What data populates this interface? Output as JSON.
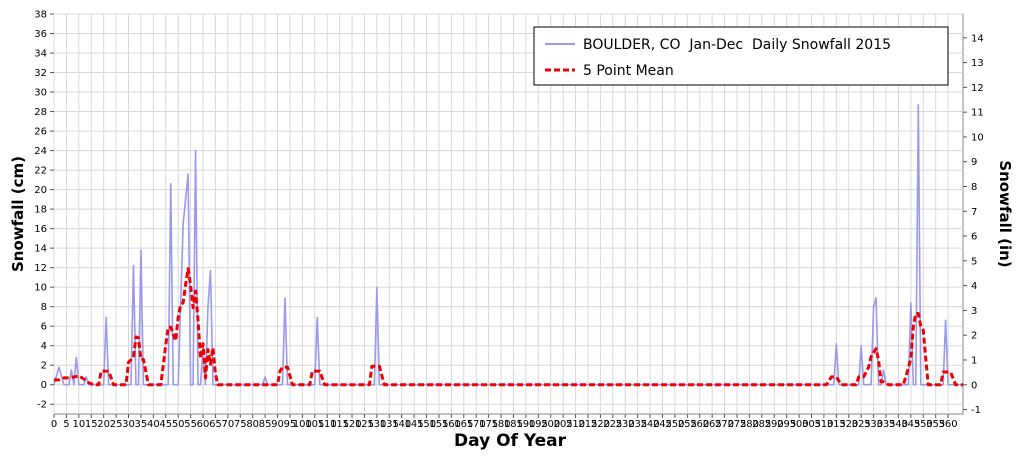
{
  "chart_data": {
    "type": "line",
    "xlabel": "Day Of Year",
    "ylabel_left": "Snowfall (cm)",
    "ylabel_right": "Snowfall (in)",
    "xlim": [
      0,
      366
    ],
    "ylim_left": [
      -3,
      38
    ],
    "ylim_right": [
      -1.18,
      14.96
    ],
    "x_ticks": [
      0,
      5,
      10,
      15,
      20,
      25,
      30,
      35,
      40,
      45,
      50,
      55,
      60,
      65,
      70,
      75,
      80,
      85,
      90,
      95,
      100,
      105,
      110,
      115,
      120,
      125,
      130,
      135,
      140,
      145,
      150,
      155,
      160,
      165,
      170,
      175,
      180,
      185,
      190,
      195,
      200,
      205,
      210,
      215,
      220,
      225,
      230,
      235,
      240,
      245,
      250,
      255,
      260,
      265,
      270,
      275,
      280,
      285,
      290,
      295,
      300,
      305,
      310,
      315,
      320,
      325,
      330,
      335,
      340,
      345,
      350,
      355,
      360
    ],
    "y_ticks_left": [
      -2,
      0,
      2,
      4,
      6,
      8,
      10,
      12,
      14,
      16,
      18,
      20,
      22,
      24,
      26,
      28,
      30,
      32,
      34,
      36,
      38
    ],
    "y_ticks_right": [
      -1,
      0,
      1,
      2,
      3,
      4,
      5,
      6,
      7,
      8,
      9,
      10,
      11,
      12,
      13,
      14
    ],
    "grid": true,
    "legend_position": "top-right",
    "series": [
      {
        "name": "BOULDER, CO  Jan-Dec  Daily Snowfall 2015",
        "color": "#9999ee",
        "style": "solid",
        "points": [
          [
            0,
            0
          ],
          [
            2,
            1.8
          ],
          [
            4,
            0
          ],
          [
            6,
            0
          ],
          [
            7,
            1.5
          ],
          [
            8,
            0
          ],
          [
            9,
            2.8
          ],
          [
            10,
            0
          ],
          [
            12,
            0
          ],
          [
            13,
            0.8
          ],
          [
            14,
            0
          ],
          [
            20,
            0
          ],
          [
            21,
            6.9
          ],
          [
            22,
            0
          ],
          [
            31,
            0
          ],
          [
            32,
            12.2
          ],
          [
            33,
            0
          ],
          [
            34,
            0
          ],
          [
            35,
            13.8
          ],
          [
            36,
            0
          ],
          [
            46,
            0
          ],
          [
            47,
            20.6
          ],
          [
            48,
            0
          ],
          [
            50,
            0
          ],
          [
            52,
            16.5
          ],
          [
            54,
            21.6
          ],
          [
            55,
            0
          ],
          [
            56,
            0
          ],
          [
            57,
            24
          ],
          [
            58,
            0
          ],
          [
            59,
            0
          ],
          [
            60,
            3.8
          ],
          [
            61,
            0
          ],
          [
            62,
            8
          ],
          [
            63,
            11.7
          ],
          [
            64,
            0
          ],
          [
            65,
            0
          ],
          [
            84,
            0
          ],
          [
            85,
            0.8
          ],
          [
            86,
            0
          ],
          [
            92,
            0
          ],
          [
            93,
            8.9
          ],
          [
            94,
            0
          ],
          [
            105,
            0
          ],
          [
            106,
            6.9
          ],
          [
            107,
            0
          ],
          [
            129,
            0
          ],
          [
            130,
            10
          ],
          [
            131,
            0
          ],
          [
            314,
            0
          ],
          [
            315,
            4.2
          ],
          [
            316,
            0
          ],
          [
            324,
            0
          ],
          [
            325,
            4
          ],
          [
            326,
            0
          ],
          [
            329,
            0
          ],
          [
            330,
            8
          ],
          [
            331,
            8.9
          ],
          [
            332,
            0
          ],
          [
            333,
            0
          ],
          [
            334,
            1.5
          ],
          [
            335,
            0
          ],
          [
            344,
            0
          ],
          [
            345,
            8.4
          ],
          [
            346,
            0
          ],
          [
            347,
            0
          ],
          [
            348,
            28.7
          ],
          [
            349,
            0
          ],
          [
            358,
            0
          ],
          [
            359,
            6.6
          ],
          [
            360,
            0
          ],
          [
            366,
            0
          ]
        ]
      },
      {
        "name": "5 Point Mean",
        "color": "#ee0000",
        "style": "dashed",
        "points": [
          [
            0,
            0.5
          ],
          [
            2,
            0.5
          ],
          [
            4,
            0.7
          ],
          [
            6,
            0.7
          ],
          [
            8,
            0.8
          ],
          [
            10,
            0.9
          ],
          [
            12,
            0.6
          ],
          [
            14,
            0.2
          ],
          [
            16,
            0
          ],
          [
            18,
            0
          ],
          [
            19,
            1.4
          ],
          [
            22,
            1.4
          ],
          [
            24,
            0
          ],
          [
            29,
            0
          ],
          [
            30,
            2.3
          ],
          [
            32,
            2.8
          ],
          [
            33,
            4.9
          ],
          [
            34,
            4.8
          ],
          [
            35,
            2.6
          ],
          [
            36,
            2.6
          ],
          [
            38,
            0
          ],
          [
            43,
            0
          ],
          [
            45,
            4.1
          ],
          [
            46,
            5.9
          ],
          [
            47,
            5.9
          ],
          [
            49,
            4.5
          ],
          [
            50,
            6.9
          ],
          [
            51,
            8.2
          ],
          [
            52,
            8.4
          ],
          [
            53,
            10.3
          ],
          [
            54,
            11.9
          ],
          [
            55,
            10.2
          ],
          [
            56,
            7.9
          ],
          [
            57,
            9.6
          ],
          [
            58,
            6.6
          ],
          [
            59,
            2.7
          ],
          [
            60,
            4.2
          ],
          [
            61,
            0.7
          ],
          [
            62,
            3.6
          ],
          [
            63,
            2.1
          ],
          [
            64,
            3.8
          ],
          [
            65,
            1.1
          ],
          [
            66,
            0
          ],
          [
            90,
            0
          ],
          [
            91,
            1.4
          ],
          [
            92,
            1.8
          ],
          [
            94,
            1.8
          ],
          [
            96,
            0
          ],
          [
            103,
            0
          ],
          [
            104,
            1.4
          ],
          [
            107,
            1.4
          ],
          [
            109,
            0
          ],
          [
            127,
            0
          ],
          [
            128,
            1.9
          ],
          [
            131,
            1.9
          ],
          [
            133,
            0
          ],
          [
            311,
            0
          ],
          [
            313,
            0.8
          ],
          [
            315,
            0.8
          ],
          [
            317,
            0
          ],
          [
            323,
            0
          ],
          [
            324,
            0.8
          ],
          [
            326,
            0.8
          ],
          [
            328,
            1.8
          ],
          [
            329,
            2.9
          ],
          [
            331,
            3.7
          ],
          [
            332,
            2.5
          ],
          [
            333,
            0.3
          ],
          [
            334,
            0.3
          ],
          [
            336,
            0
          ],
          [
            342,
            0
          ],
          [
            344,
            1.7
          ],
          [
            345,
            2.7
          ],
          [
            346,
            6
          ],
          [
            347,
            7.3
          ],
          [
            348,
            7.3
          ],
          [
            349,
            6
          ],
          [
            350,
            5.6
          ],
          [
            351,
            2.7
          ],
          [
            352,
            0
          ],
          [
            357,
            0
          ],
          [
            358,
            1.3
          ],
          [
            361,
            1.3
          ],
          [
            363,
            0
          ],
          [
            366,
            0
          ]
        ]
      }
    ]
  }
}
